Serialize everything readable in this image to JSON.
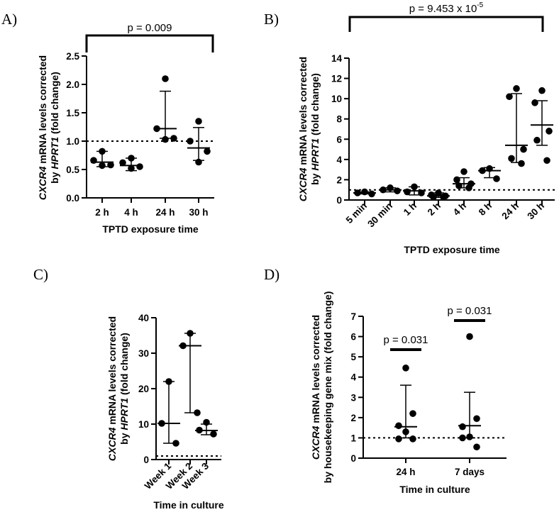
{
  "chart_data": [
    {
      "panel": "A)",
      "type": "scatter",
      "ylabel_line1_italic": "CXCR4",
      "ylabel_line1_rest": " mRNA levels corrected",
      "ylabel_line2_pre": "by ",
      "ylabel_line2_italic": "HPRT1",
      "ylabel_line2_post": " (fold change)",
      "xlabel": "TPTD exposure time",
      "ylim": [
        0,
        2.5
      ],
      "yticks": [
        0,
        0.5,
        1,
        1.5,
        2,
        2.5
      ],
      "ytick_labels": [
        "0.0",
        "0.5",
        "1.0",
        "1.5",
        "2.0",
        "2.5"
      ],
      "reference_line": 1.0,
      "pvalue": {
        "text": "p = 0.009",
        "from": 0,
        "to": 3
      },
      "categories": [
        "2 h",
        "4 h",
        "24 h",
        "30 h"
      ],
      "groups": [
        {
          "points": [
            0.82,
            0.66,
            0.58,
            0.57
          ],
          "median": 0.63,
          "upper": 0.82,
          "lower": 0.55
        },
        {
          "points": [
            0.7,
            0.62,
            0.55,
            0.52
          ],
          "median": 0.57,
          "upper": 0.7,
          "lower": 0.48
        },
        {
          "points": [
            2.1,
            1.22,
            1.05,
            1.03
          ],
          "median": 1.22,
          "upper": 1.88,
          "lower": 1.05
        },
        {
          "points": [
            1.35,
            1.0,
            0.82,
            0.63
          ],
          "median": 0.88,
          "upper": 1.24,
          "lower": 0.66
        }
      ]
    },
    {
      "panel": "B)",
      "type": "scatter",
      "ylabel_line1_italic": "CXCR4",
      "ylabel_line1_rest": " mRNA levels corrected",
      "ylabel_line2_pre": "by ",
      "ylabel_line2_italic": "HPRT1",
      "ylabel_line2_post": " (fold change)",
      "xlabel": "TPTD exposure time",
      "ylim": [
        0,
        14
      ],
      "yticks": [
        0,
        2,
        4,
        6,
        8,
        10,
        12,
        14
      ],
      "ytick_labels": [
        "0",
        "2",
        "4",
        "6",
        "8",
        "10",
        "12",
        "14"
      ],
      "reference_line": 1.0,
      "pvalue": {
        "text": "p = 9.453 x 10",
        "exponent": "-5",
        "from": 0,
        "to": 7
      },
      "categories": [
        "5 min",
        "30 min",
        "1 h",
        "2 h",
        "4 h",
        "8 h",
        "24 h",
        "30 h"
      ],
      "groups": [
        {
          "points": [
            0.8,
            0.7,
            0.6
          ],
          "median": 0.7,
          "upper": 0.8,
          "lower": 0.6
        },
        {
          "points": [
            1.2,
            1.0,
            0.9
          ],
          "median": 1.0,
          "upper": 1.2,
          "lower": 0.8
        },
        {
          "points": [
            1.3,
            0.8,
            0.7
          ],
          "median": 0.9,
          "upper": 1.3,
          "lower": 0.5
        },
        {
          "points": [
            0.7,
            0.5,
            0.4,
            0.3,
            0.3
          ],
          "median": 0.4,
          "upper": 0.7,
          "lower": 0.25
        },
        {
          "points": [
            2.8,
            2.0,
            1.6,
            1.4,
            1.2
          ],
          "median": 1.6,
          "upper": 2.2,
          "lower": 1.2
        },
        {
          "points": [
            3.1,
            2.9,
            2.1
          ],
          "median": 2.9,
          "upper": 3.2,
          "lower": 2.2
        },
        {
          "points": [
            11.0,
            10.2,
            5.0,
            4.1,
            3.6
          ],
          "median": 5.4,
          "upper": 10.5,
          "lower": 3.7
        },
        {
          "points": [
            10.8,
            9.6,
            6.8,
            5.9,
            3.9
          ],
          "median": 7.4,
          "upper": 9.8,
          "lower": 5.4
        }
      ]
    },
    {
      "panel": "C)",
      "type": "scatter",
      "ylabel_line1_italic": "CXCR4",
      "ylabel_line1_rest": " mRNA levels corrected",
      "ylabel_line2_pre": "by ",
      "ylabel_line2_italic": "HPRT1",
      "ylabel_line2_post": " (fold change)",
      "xlabel": "Time in culture",
      "ylim": [
        0,
        40
      ],
      "yticks": [
        0,
        10,
        20,
        30,
        40
      ],
      "ytick_labels": [
        "0",
        "10",
        "20",
        "30",
        "40"
      ],
      "reference_line": 1.0,
      "categories": [
        "Week 1",
        "Week 2",
        "Week 3"
      ],
      "groups": [
        {
          "points": [
            22.0,
            10.2,
            4.6
          ],
          "median": 10.2,
          "upper": 22.0,
          "lower": 4.6
        },
        {
          "points": [
            35.6,
            32.1,
            13.2
          ],
          "median": 32.1,
          "upper": 35.6,
          "lower": 13.2
        },
        {
          "points": [
            10.5,
            8.3,
            7.2
          ],
          "median": 8.2,
          "upper": 10.0,
          "lower": 7.0
        }
      ]
    },
    {
      "panel": "D)",
      "type": "scatter",
      "ylabel_line1_italic": "CXCR4",
      "ylabel_line1_rest": " mRNA levels corrected",
      "ylabel_line2_pre": "by housekeeping gene mix (fold change)",
      "ylabel_line2_italic": "",
      "ylabel_line2_post": "",
      "xlabel": "Time in culture",
      "ylim": [
        0,
        7
      ],
      "yticks": [
        0,
        1,
        2,
        3,
        4,
        5,
        6,
        7
      ],
      "ytick_labels": [
        "0",
        "1",
        "2",
        "3",
        "4",
        "5",
        "6",
        "7"
      ],
      "reference_line": 1.0,
      "categories": [
        "24 h",
        "7 days"
      ],
      "group_pvalues": [
        "p = 0.031",
        "p = 0.031"
      ],
      "groups": [
        {
          "points": [
            4.45,
            2.2,
            1.6,
            1.3,
            0.95,
            0.95
          ],
          "median": 1.55,
          "upper": 3.6,
          "lower": 1.0
        },
        {
          "points": [
            6.0,
            1.95,
            1.55,
            1.05,
            1.0,
            0.55
          ],
          "median": 1.6,
          "upper": 3.25,
          "lower": 1.0
        }
      ]
    }
  ]
}
